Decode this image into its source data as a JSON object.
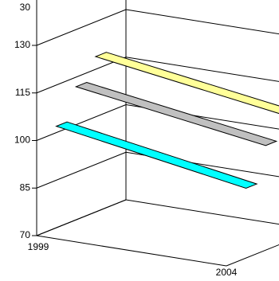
{
  "chart_data": {
    "type": "line",
    "style": "3d-ribbon",
    "categories": [
      "1999",
      "2004"
    ],
    "series": [
      {
        "values": [
          119,
          110
        ],
        "color": "#ffff99"
      },
      {
        "values": [
          112,
          103
        ],
        "color": "#c0c0c0"
      },
      {
        "values": [
          102,
          92
        ],
        "color": "#00ffff"
      }
    ],
    "y_ticks": [
      "70",
      "85",
      "100",
      "115",
      "130"
    ],
    "top_tick_partial": "30",
    "ylim": [
      70,
      145
    ],
    "grid": true,
    "legend": "none",
    "title": "",
    "xlabel": "",
    "ylabel": ""
  }
}
